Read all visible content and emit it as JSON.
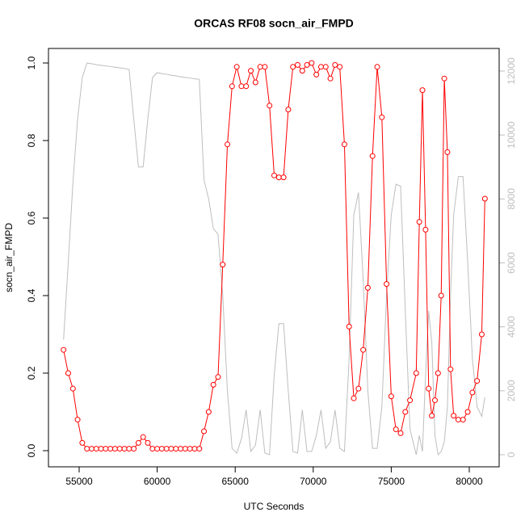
{
  "chart_data": {
    "type": "line",
    "title": "ORCAS RF08 socn_air_FMPD",
    "xlabel": "UTC Seconds",
    "ylabel": "socn_air_FMPD",
    "x": [
      54000,
      54300,
      54600,
      54900,
      55200,
      55500,
      55800,
      56100,
      56400,
      56700,
      57000,
      57300,
      57600,
      57900,
      58200,
      58500,
      58800,
      59100,
      59400,
      59700,
      60000,
      60300,
      60600,
      60900,
      61200,
      61500,
      61800,
      62100,
      62400,
      62700,
      63000,
      63300,
      63600,
      63900,
      64200,
      64500,
      64800,
      65100,
      65400,
      65700,
      66000,
      66300,
      66600,
      66900,
      67200,
      67500,
      67800,
      68100,
      68400,
      68700,
      69000,
      69300,
      69600,
      69900,
      70200,
      70500,
      70800,
      71100,
      71400,
      71700,
      72000,
      72300,
      72600,
      72900,
      73200,
      73500,
      73800,
      74100,
      74400,
      74700,
      75000,
      75300,
      75600,
      75900,
      76200,
      76600,
      76800,
      77000,
      77200,
      77400,
      77600,
      77800,
      78000,
      78200,
      78400,
      78600,
      78800,
      79000,
      79300,
      79600,
      79900,
      80200,
      80500,
      80800,
      81000
    ],
    "series": [
      {
        "color": "#ff0000",
        "marker": "circle",
        "values": [
          0.26,
          0.2,
          0.16,
          0.08,
          0.02,
          0.005,
          0.005,
          0.005,
          0.005,
          0.005,
          0.005,
          0.005,
          0.005,
          0.005,
          0.005,
          0.005,
          0.02,
          0.035,
          0.02,
          0.005,
          0.005,
          0.005,
          0.005,
          0.005,
          0.005,
          0.005,
          0.005,
          0.005,
          0.005,
          0.005,
          0.05,
          0.1,
          0.17,
          0.19,
          0.48,
          0.79,
          0.94,
          0.99,
          0.94,
          0.94,
          0.98,
          0.95,
          0.99,
          0.99,
          0.89,
          0.71,
          0.705,
          0.705,
          0.88,
          0.99,
          0.995,
          0.98,
          0.995,
          1.0,
          0.97,
          0.99,
          0.99,
          0.96,
          0.995,
          0.99,
          0.79,
          0.32,
          0.135,
          0.16,
          0.26,
          0.42,
          0.76,
          0.99,
          0.86,
          0.43,
          0.14,
          0.055,
          0.045,
          0.1,
          0.13,
          0.2,
          0.59,
          0.93,
          0.57,
          0.16,
          0.09,
          0.13,
          0.2,
          0.4,
          0.96,
          0.77,
          0.21,
          0.09,
          0.08,
          0.08,
          0.1,
          0.15,
          0.18,
          0.3,
          0.65
        ]
      },
      {
        "color": "#bebebe",
        "axis": "y2",
        "values": [
          3600,
          6000,
          8500,
          10500,
          11800,
          12250,
          12230,
          12200,
          12180,
          12160,
          12140,
          12120,
          12100,
          12080,
          12050,
          10500,
          9000,
          9000,
          10500,
          11800,
          11950,
          11920,
          11900,
          11870,
          11850,
          11820,
          11800,
          11780,
          11760,
          11740,
          8600,
          8000,
          7070,
          6900,
          5000,
          2000,
          200,
          50,
          500,
          1400,
          100,
          300,
          1400,
          50,
          0,
          2500,
          4100,
          4100,
          2000,
          100,
          50,
          1400,
          100,
          100,
          600,
          1400,
          200,
          400,
          1400,
          200,
          100,
          3000,
          7500,
          8200,
          5500,
          2000,
          200,
          200,
          1500,
          5000,
          7500,
          8460,
          8400,
          4500,
          800,
          0,
          600,
          100,
          2500,
          4500,
          3500,
          600,
          0,
          100,
          400,
          1500,
          5000,
          7500,
          8700,
          8700,
          6000,
          3000,
          1500,
          1200,
          1800
        ]
      }
    ],
    "xlim": [
      53033,
      81915
    ],
    "xticks": [
      55000,
      60000,
      65000,
      70000,
      75000,
      80000
    ],
    "ylim": [
      -0.0417,
      1.0375
    ],
    "yticks": [
      {
        "value": 0,
        "label": "0.0"
      },
      {
        "value": 0.2,
        "label": "0.2"
      },
      {
        "value": 0.4,
        "label": "0.4"
      },
      {
        "value": 0.6,
        "label": "0.6"
      },
      {
        "value": 0.8,
        "label": "0.8"
      },
      {
        "value": 1,
        "label": "1.0"
      }
    ],
    "y2lim": [
      -379,
      12707
    ],
    "y2ticks": [
      0,
      2000,
      4000,
      6000,
      8000,
      10000,
      12000
    ],
    "y2color": "#bebebe"
  }
}
